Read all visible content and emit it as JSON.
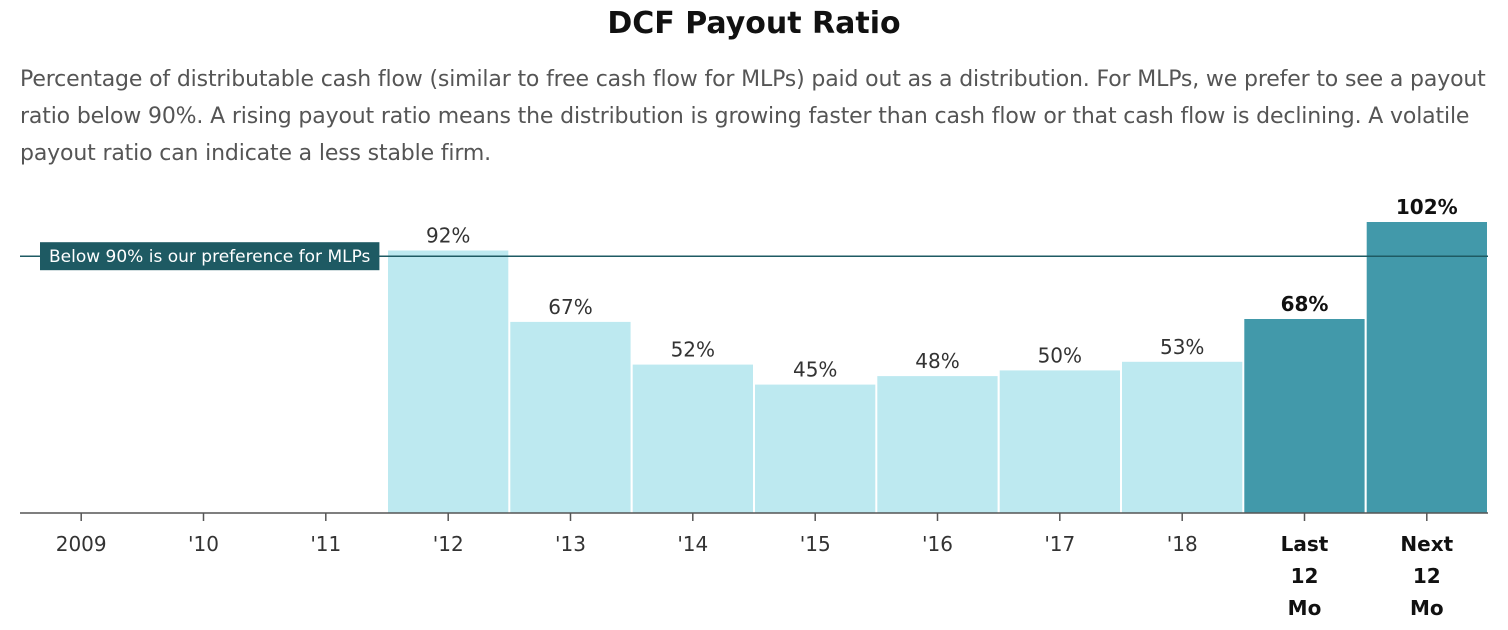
{
  "header": {
    "title": "DCF Payout Ratio",
    "description": "Percentage of distributable cash flow (similar to free cash flow for MLPs) paid out as a distribution. For MLPs, we prefer to see a payout ratio below 90%. A rising payout ratio means the distribution is growing faster than cash flow or that cash flow is declining. A volatile payout ratio can indicate a less stable firm."
  },
  "chart_data": {
    "type": "bar",
    "title": "DCF Payout Ratio",
    "xlabel": "",
    "ylabel": "",
    "categories": [
      "2009",
      "'10",
      "'11",
      "'12",
      "'13",
      "'14",
      "'15",
      "'16",
      "'17",
      "'18",
      "Last 12 Mo",
      "Next 12 Mo"
    ],
    "category_lines": [
      [
        "2009"
      ],
      [
        "'10"
      ],
      [
        "'11"
      ],
      [
        "'12"
      ],
      [
        "'13"
      ],
      [
        "'14"
      ],
      [
        "'15"
      ],
      [
        "'16"
      ],
      [
        "'17"
      ],
      [
        "'18"
      ],
      [
        "Last",
        "12",
        "Mo"
      ],
      [
        "Next",
        "12",
        "Mo"
      ]
    ],
    "values": [
      null,
      null,
      null,
      92,
      67,
      52,
      45,
      48,
      50,
      53,
      68,
      102
    ],
    "value_labels": [
      "",
      "",
      "",
      "92%",
      "67%",
      "52%",
      "45%",
      "48%",
      "50%",
      "53%",
      "68%",
      "102%"
    ],
    "highlighted": [
      false,
      false,
      false,
      false,
      false,
      false,
      false,
      false,
      false,
      false,
      true,
      true
    ],
    "ylim": [
      0,
      105
    ],
    "grid": false,
    "reference_line": {
      "value": 90,
      "label": "Below 90% is our preference for MLPs"
    },
    "colors": {
      "historical_bar": "#bde9f0",
      "highlighted_bar": "#4299aa",
      "reference_line": "#1e5a63",
      "reference_label_bg": "#1e5a63",
      "reference_label_text": "#ffffff",
      "axis": "#555555",
      "label_text": "#333333",
      "highlight_label_text": "#111111"
    }
  }
}
